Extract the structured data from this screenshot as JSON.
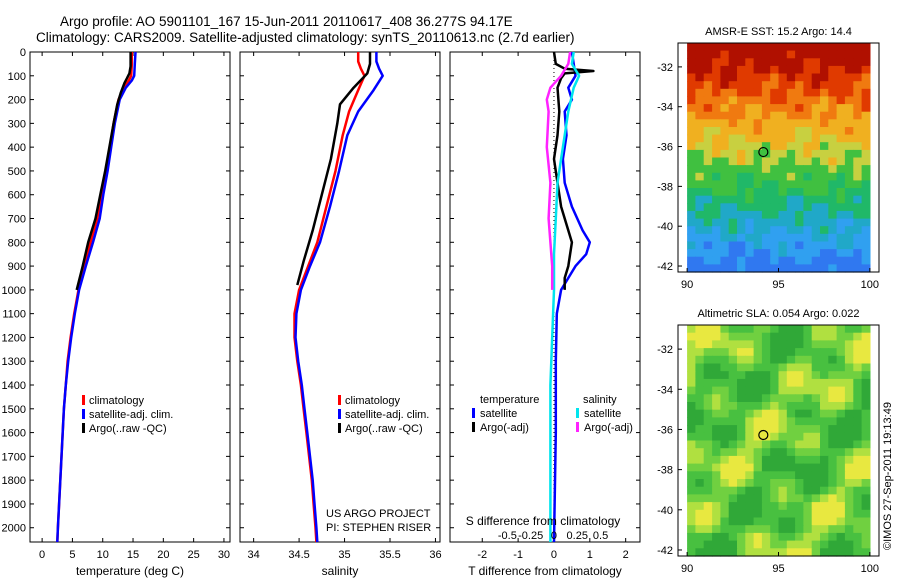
{
  "title_line1": "Argo profile: AO 5901101_167 15-Jun-2011 20110617_408 36.277S 94.17E",
  "title_line2": "Climatology: CARS2009. Satellite-adjusted climatology: synTS_20110613.nc (2.7d earlier)",
  "credit": "US ARGO PROJECT",
  "pi": "PI: STEPHEN RISER",
  "stamp": "©IMOS 27-Sep-2011 19:13:49",
  "colors": {
    "red": "#ff0000",
    "blue": "#0000ff",
    "black": "#000000",
    "cyan": "#00e5ee",
    "magenta": "#ff22ff"
  },
  "chart_data": [
    {
      "type": "line",
      "xlabel": "temperature (deg C)",
      "xticks": [
        0,
        5,
        10,
        15,
        20,
        25,
        30
      ],
      "xlim": [
        -2,
        31
      ],
      "yticks": [
        0,
        100,
        200,
        300,
        400,
        500,
        600,
        700,
        800,
        900,
        1000,
        1100,
        1200,
        1300,
        1400,
        1500,
        1600,
        1700,
        1800,
        1900,
        2000
      ],
      "ylim": [
        0,
        2060
      ],
      "legend": [
        "climatology",
        "satellite-adj. clim.",
        "Argo(..raw -QC)"
      ],
      "series": [
        {
          "name": "climatology",
          "color": "#ff0000",
          "points": [
            [
              14.8,
              0
            ],
            [
              14.8,
              50
            ],
            [
              14.7,
              100
            ],
            [
              14.3,
              120
            ],
            [
              13.5,
              150
            ],
            [
              12.6,
              200
            ],
            [
              11.8,
              300
            ],
            [
              11.2,
              400
            ],
            [
              10.5,
              500
            ],
            [
              9.8,
              600
            ],
            [
              9.1,
              700
            ],
            [
              8.0,
              800
            ],
            [
              7.0,
              900
            ],
            [
              6.0,
              1000
            ],
            [
              5.3,
              1100
            ],
            [
              4.7,
              1200
            ],
            [
              4.2,
              1300
            ],
            [
              3.9,
              1400
            ],
            [
              3.6,
              1500
            ],
            [
              3.4,
              1600
            ],
            [
              3.2,
              1700
            ],
            [
              3.0,
              1800
            ],
            [
              2.8,
              1900
            ],
            [
              2.6,
              2000
            ],
            [
              2.5,
              2060
            ]
          ]
        },
        {
          "name": "satellite-adj. clim.",
          "color": "#0000ff",
          "points": [
            [
              15.4,
              0
            ],
            [
              15.3,
              50
            ],
            [
              15.2,
              100
            ],
            [
              14.8,
              120
            ],
            [
              13.8,
              150
            ],
            [
              12.8,
              200
            ],
            [
              12.0,
              300
            ],
            [
              11.4,
              400
            ],
            [
              10.8,
              500
            ],
            [
              10.1,
              600
            ],
            [
              9.5,
              700
            ],
            [
              8.4,
              800
            ],
            [
              7.2,
              900
            ],
            [
              6.1,
              1000
            ],
            [
              5.4,
              1100
            ],
            [
              4.8,
              1200
            ],
            [
              4.3,
              1300
            ],
            [
              3.9,
              1400
            ],
            [
              3.6,
              1500
            ],
            [
              3.4,
              1600
            ],
            [
              3.2,
              1700
            ],
            [
              3.0,
              1800
            ],
            [
              2.8,
              1900
            ],
            [
              2.6,
              2000
            ],
            [
              2.5,
              2060
            ]
          ]
        },
        {
          "name": "Argo(..raw -QC)",
          "color": "#000000",
          "points": [
            [
              14.6,
              0
            ],
            [
              14.6,
              60
            ],
            [
              14.4,
              90
            ],
            [
              14.0,
              110
            ],
            [
              13.6,
              130
            ],
            [
              13.0,
              170
            ],
            [
              12.4,
              220
            ],
            [
              11.8,
              300
            ],
            [
              11.1,
              400
            ],
            [
              10.4,
              500
            ],
            [
              9.6,
              600
            ],
            [
              8.8,
              700
            ],
            [
              7.6,
              800
            ],
            [
              6.7,
              900
            ],
            [
              5.7,
              1000
            ]
          ]
        }
      ]
    },
    {
      "type": "line",
      "xlabel": "salinity",
      "xticks": [
        34,
        34.5,
        35,
        35.5,
        36
      ],
      "xlim": [
        33.85,
        36.05
      ],
      "yticks": [
        0,
        100,
        200,
        300,
        400,
        500,
        600,
        700,
        800,
        900,
        1000,
        1100,
        1200,
        1300,
        1400,
        1500,
        1600,
        1700,
        1800,
        1900,
        2000
      ],
      "ylim": [
        0,
        2060
      ],
      "legend": [
        "climatology",
        "satellite-adj. clim.",
        "Argo(..raw -QC)"
      ],
      "series": [
        {
          "name": "climatology",
          "color": "#ff0000",
          "points": [
            [
              35.15,
              0
            ],
            [
              35.15,
              40
            ],
            [
              35.18,
              70
            ],
            [
              35.22,
              100
            ],
            [
              35.15,
              160
            ],
            [
              35.05,
              250
            ],
            [
              34.98,
              350
            ],
            [
              34.9,
              500
            ],
            [
              34.8,
              650
            ],
            [
              34.7,
              800
            ],
            [
              34.6,
              900
            ],
            [
              34.5,
              1000
            ],
            [
              34.45,
              1100
            ],
            [
              34.45,
              1200
            ],
            [
              34.48,
              1300
            ],
            [
              34.52,
              1400
            ],
            [
              34.55,
              1500
            ],
            [
              34.58,
              1600
            ],
            [
              34.61,
              1700
            ],
            [
              34.64,
              1800
            ],
            [
              34.66,
              1900
            ],
            [
              34.68,
              2000
            ],
            [
              34.69,
              2060
            ]
          ]
        },
        {
          "name": "satellite-adj. clim.",
          "color": "#0000ff",
          "points": [
            [
              35.35,
              0
            ],
            [
              35.35,
              40
            ],
            [
              35.38,
              70
            ],
            [
              35.42,
              100
            ],
            [
              35.32,
              160
            ],
            [
              35.15,
              250
            ],
            [
              35.03,
              350
            ],
            [
              34.94,
              500
            ],
            [
              34.84,
              650
            ],
            [
              34.73,
              800
            ],
            [
              34.62,
              900
            ],
            [
              34.52,
              1000
            ],
            [
              34.47,
              1100
            ],
            [
              34.46,
              1200
            ],
            [
              34.49,
              1300
            ],
            [
              34.53,
              1400
            ],
            [
              34.56,
              1500
            ],
            [
              34.59,
              1600
            ],
            [
              34.62,
              1700
            ],
            [
              34.65,
              1800
            ],
            [
              34.67,
              1900
            ],
            [
              34.69,
              2000
            ],
            [
              34.7,
              2060
            ]
          ]
        },
        {
          "name": "Argo(..raw -QC)",
          "color": "#000000",
          "points": [
            [
              35.28,
              0
            ],
            [
              35.28,
              50
            ],
            [
              35.25,
              90
            ],
            [
              35.2,
              110
            ],
            [
              35.1,
              150
            ],
            [
              34.95,
              220
            ],
            [
              34.92,
              300
            ],
            [
              34.85,
              450
            ],
            [
              34.75,
              600
            ],
            [
              34.65,
              750
            ],
            [
              34.55,
              880
            ],
            [
              34.48,
              980
            ]
          ]
        }
      ]
    },
    {
      "type": "line",
      "xlabel": "T difference from climatology",
      "xlabel_top": "S difference from climatology",
      "xticks": [
        -2,
        -1,
        0,
        1,
        2
      ],
      "xticks_top": [
        "-0.5",
        "-0.25",
        "0",
        "0.25",
        "0.5"
      ],
      "xlim": [
        -2.9,
        2.4
      ],
      "ylim": [
        0,
        2060
      ],
      "legend_headers": [
        "temperature",
        "salinity"
      ],
      "legend": [
        "satellite",
        "Argo(-adj)",
        "satellite",
        "Argo(-adj)"
      ],
      "series": [
        {
          "name": "temperature satellite",
          "color": "#0000ff",
          "points": [
            [
              0.5,
              0
            ],
            [
              0.55,
              50
            ],
            [
              0.6,
              100
            ],
            [
              0.4,
              150
            ],
            [
              0.5,
              200
            ],
            [
              0.3,
              250
            ],
            [
              0.35,
              350
            ],
            [
              0.25,
              450
            ],
            [
              0.3,
              550
            ],
            [
              0.5,
              650
            ],
            [
              0.8,
              750
            ],
            [
              1.0,
              800
            ],
            [
              0.9,
              850
            ],
            [
              0.6,
              900
            ],
            [
              0.4,
              950
            ],
            [
              0.2,
              1000
            ],
            [
              0.08,
              1100
            ],
            [
              0.05,
              1300
            ],
            [
              0.05,
              1600
            ],
            [
              0.0,
              2060
            ]
          ]
        },
        {
          "name": "temperature Argo(-adj)",
          "color": "#000000",
          "points": [
            [
              0.0,
              0
            ],
            [
              0.05,
              50
            ],
            [
              0.3,
              70
            ],
            [
              1.1,
              80
            ],
            [
              0.3,
              90
            ],
            [
              0.2,
              110
            ],
            [
              0.1,
              150
            ],
            [
              0.15,
              250
            ],
            [
              0.1,
              350
            ],
            [
              0.0,
              450
            ],
            [
              0.1,
              550
            ],
            [
              0.2,
              650
            ],
            [
              0.4,
              750
            ],
            [
              0.5,
              800
            ],
            [
              0.4,
              900
            ],
            [
              0.3,
              950
            ],
            [
              0.3,
              1000
            ]
          ]
        },
        {
          "name": "salinity satellite",
          "color": "#00e5ee",
          "points": [
            [
              0.55,
              0
            ],
            [
              0.5,
              50
            ],
            [
              0.7,
              100
            ],
            [
              0.55,
              150
            ],
            [
              0.4,
              250
            ],
            [
              0.3,
              350
            ],
            [
              0.2,
              450
            ],
            [
              0.1,
              550
            ],
            [
              0.05,
              700
            ],
            [
              0.0,
              850
            ],
            [
              0.0,
              1000
            ],
            [
              -0.05,
              1200
            ],
            [
              -0.1,
              1400
            ],
            [
              -0.1,
              1700
            ],
            [
              -0.1,
              2060
            ]
          ]
        },
        {
          "name": "salinity Argo(-adj)",
          "color": "#ff22ff",
          "points": [
            [
              0.45,
              0
            ],
            [
              0.4,
              50
            ],
            [
              0.2,
              100
            ],
            [
              -0.1,
              150
            ],
            [
              -0.2,
              200
            ],
            [
              -0.15,
              250
            ],
            [
              -0.2,
              400
            ],
            [
              -0.1,
              550
            ],
            [
              -0.15,
              700
            ],
            [
              -0.1,
              800
            ],
            [
              -0.05,
              900
            ],
            [
              -0.05,
              1000
            ]
          ]
        }
      ]
    },
    {
      "type": "heatmap",
      "title": "AMSR-E SST: 15.2 Argo: 14.4",
      "xticks": [
        90,
        95,
        100
      ],
      "yticks": [
        -32,
        -34,
        -36,
        -38,
        -40,
        -42
      ],
      "xlim": [
        89.5,
        100.5
      ],
      "ylim": [
        -42.3,
        -30.8
      ],
      "marker": {
        "lon": 94.17,
        "lat": -36.277
      }
    },
    {
      "type": "heatmap",
      "title": "Altimetric SLA: 0.054 Argo: 0.022",
      "xticks": [
        90,
        95,
        100
      ],
      "yticks": [
        -32,
        -34,
        -36,
        -38,
        -40,
        -42
      ],
      "xlim": [
        89.5,
        100.5
      ],
      "ylim": [
        -42.3,
        -30.8
      ],
      "marker": {
        "lon": 94.17,
        "lat": -36.277
      }
    }
  ]
}
